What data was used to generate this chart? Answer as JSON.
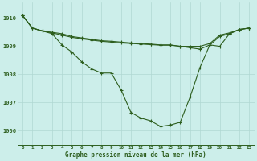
{
  "line1": {
    "x": [
      0,
      1,
      2,
      3,
      4,
      5,
      6,
      7,
      8,
      9,
      10,
      11,
      12,
      13,
      14,
      15,
      16,
      17,
      18,
      19,
      20,
      21,
      22,
      23
    ],
    "y": [
      1010.1,
      1009.65,
      1009.55,
      1009.45,
      1009.05,
      1008.8,
      1008.45,
      1008.2,
      1008.05,
      1008.05,
      1007.45,
      1006.65,
      1006.45,
      1006.35,
      1006.15,
      1006.2,
      1006.3,
      1007.2,
      1008.25,
      1009.05,
      1009.0,
      1009.45,
      1009.6,
      1009.65
    ]
  },
  "line2": {
    "x": [
      0,
      1,
      2,
      3,
      4,
      5,
      6,
      7,
      8,
      9,
      10,
      11,
      12,
      13,
      14,
      15,
      16,
      17,
      18,
      19,
      20,
      21,
      22,
      23
    ],
    "y": [
      1010.1,
      1009.65,
      1009.55,
      1009.5,
      1009.45,
      1009.35,
      1009.3,
      1009.25,
      1009.2,
      1009.18,
      1009.15,
      1009.12,
      1009.1,
      1009.08,
      1009.05,
      1009.05,
      1009.0,
      1008.95,
      1008.9,
      1009.05,
      1009.35,
      1009.45,
      1009.6,
      1009.65
    ]
  },
  "line3": {
    "x": [
      0,
      1,
      2,
      3,
      4,
      5,
      6,
      7,
      8,
      9,
      10,
      11,
      12,
      13,
      14,
      15,
      16,
      17,
      18,
      19,
      20,
      21,
      22,
      23
    ],
    "y": [
      1010.1,
      1009.65,
      1009.55,
      1009.48,
      1009.4,
      1009.32,
      1009.27,
      1009.22,
      1009.18,
      1009.15,
      1009.12,
      1009.1,
      1009.08,
      1009.06,
      1009.04,
      1009.04,
      1009.0,
      1009.0,
      1009.0,
      1009.1,
      1009.4,
      1009.48,
      1009.6,
      1009.65
    ]
  },
  "line_color": "#2d5e1e",
  "bg_color": "#cceeea",
  "grid_color": "#b0d8d2",
  "title": "Graphe pression niveau de la mer (hPa)",
  "ylim": [
    1005.5,
    1010.55
  ],
  "yticks": [
    1006,
    1007,
    1008,
    1009,
    1010
  ],
  "xticks": [
    0,
    1,
    2,
    3,
    4,
    5,
    6,
    7,
    8,
    9,
    10,
    11,
    12,
    13,
    14,
    15,
    16,
    17,
    18,
    19,
    20,
    21,
    22,
    23
  ]
}
